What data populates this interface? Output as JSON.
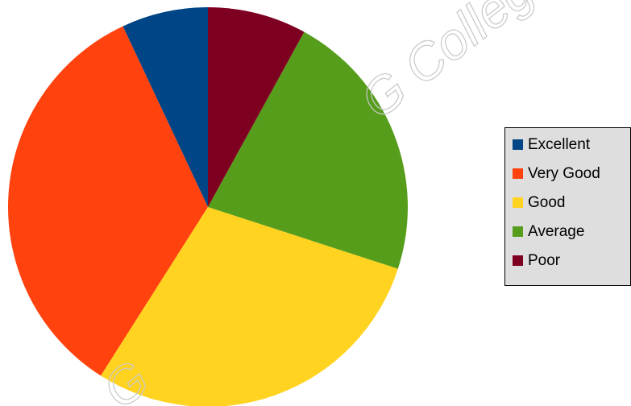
{
  "chart_data": {
    "type": "pie",
    "title": "",
    "categories": [
      "Excellent",
      "Very Good",
      "Good",
      "Average",
      "Poor"
    ],
    "values": [
      7,
      34,
      29,
      22,
      8
    ],
    "colors": [
      "#004586",
      "#ff420e",
      "#ffd320",
      "#579d1c",
      "#7e0021"
    ],
    "legend_placement": "right",
    "slice_order": "counterclockwise-from-top"
  },
  "watermark": {
    "text": "G College",
    "text_lower": "G"
  }
}
